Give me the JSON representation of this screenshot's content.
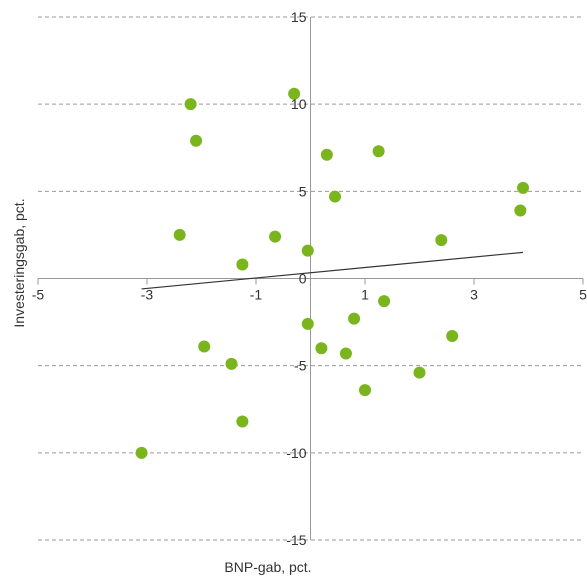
{
  "chart_data": {
    "type": "scatter",
    "title": "",
    "xlabel": "BNP-gab, pct.",
    "ylabel": "Investeringsgab, pct.",
    "xlim": [
      -5,
      5
    ],
    "ylim": [
      -15,
      15
    ],
    "x_ticks": [
      -5,
      -3,
      -1,
      1,
      3,
      5
    ],
    "y_ticks": [
      -15,
      -10,
      -5,
      0,
      5,
      10,
      15
    ],
    "grid": {
      "horizontal": true,
      "style": "dashed"
    },
    "point_color": "#7ab51d",
    "trend_color": "#333333",
    "series": [
      {
        "points": [
          {
            "x": -2.2,
            "y": 10.0
          },
          {
            "x": -0.3,
            "y": 10.6
          },
          {
            "x": -2.1,
            "y": 7.9
          },
          {
            "x": 0.3,
            "y": 7.1
          },
          {
            "x": 1.25,
            "y": 7.3
          },
          {
            "x": 3.9,
            "y": 5.2
          },
          {
            "x": 0.45,
            "y": 4.7
          },
          {
            "x": 3.85,
            "y": 3.9
          },
          {
            "x": -2.4,
            "y": 2.5
          },
          {
            "x": -0.65,
            "y": 2.4
          },
          {
            "x": 2.4,
            "y": 2.2
          },
          {
            "x": -0.05,
            "y": 1.6
          },
          {
            "x": -1.25,
            "y": 0.8
          },
          {
            "x": 1.35,
            "y": -1.3
          },
          {
            "x": -0.05,
            "y": -2.6
          },
          {
            "x": 0.8,
            "y": -2.3
          },
          {
            "x": 2.6,
            "y": -3.3
          },
          {
            "x": -1.95,
            "y": -3.9
          },
          {
            "x": 0.2,
            "y": -4.0
          },
          {
            "x": 0.65,
            "y": -4.3
          },
          {
            "x": -1.45,
            "y": -4.9
          },
          {
            "x": 2.0,
            "y": -5.4
          },
          {
            "x": 1.0,
            "y": -6.4
          },
          {
            "x": -1.25,
            "y": -8.2
          },
          {
            "x": -3.1,
            "y": -10.0
          }
        ]
      }
    ],
    "trendline": {
      "x": [
        -3.1,
        3.9
      ],
      "y": [
        -0.6,
        1.5
      ]
    }
  }
}
